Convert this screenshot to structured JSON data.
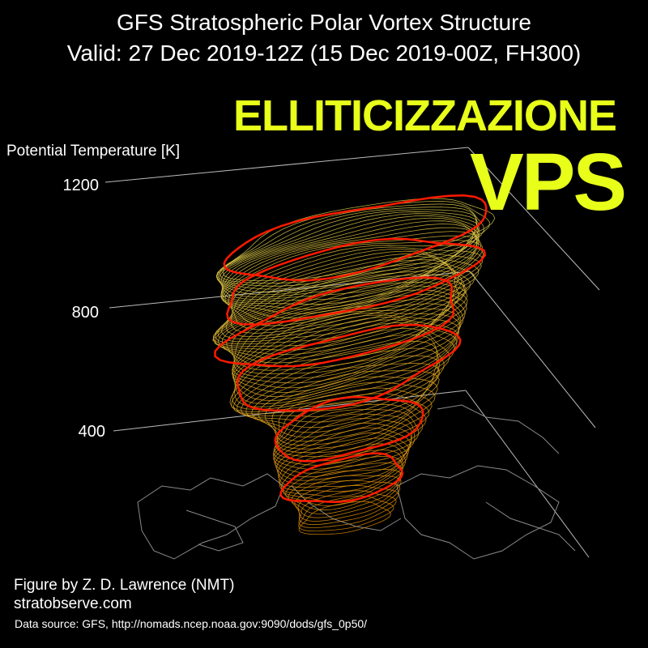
{
  "title": {
    "line1": "GFS Stratospheric Polar Vortex Structure",
    "line2": "Valid: 27 Dec 2019-12Z  (15 Dec 2019-00Z, FH300)"
  },
  "overlay": {
    "line1": "ELLITICIZZAZIONE",
    "line2": "VPS",
    "color": "#e8ff1a"
  },
  "axis": {
    "label": "Potential Temperature [K]",
    "ticks": [
      "1200",
      "800",
      "400"
    ]
  },
  "credits": {
    "author": "Figure by Z. D. Lawrence (NMT)",
    "site": "stratobserve.com",
    "source": "Data source: GFS, http://nomads.ncep.noaa.gov:9090/dods/gfs_0p50/"
  },
  "colors": {
    "background": "#000000",
    "highlight_contour": "#ff1a00",
    "low_layers": "#e08a00",
    "high_layers": "#d8c84a",
    "coastline": "#8a8a8a"
  }
}
